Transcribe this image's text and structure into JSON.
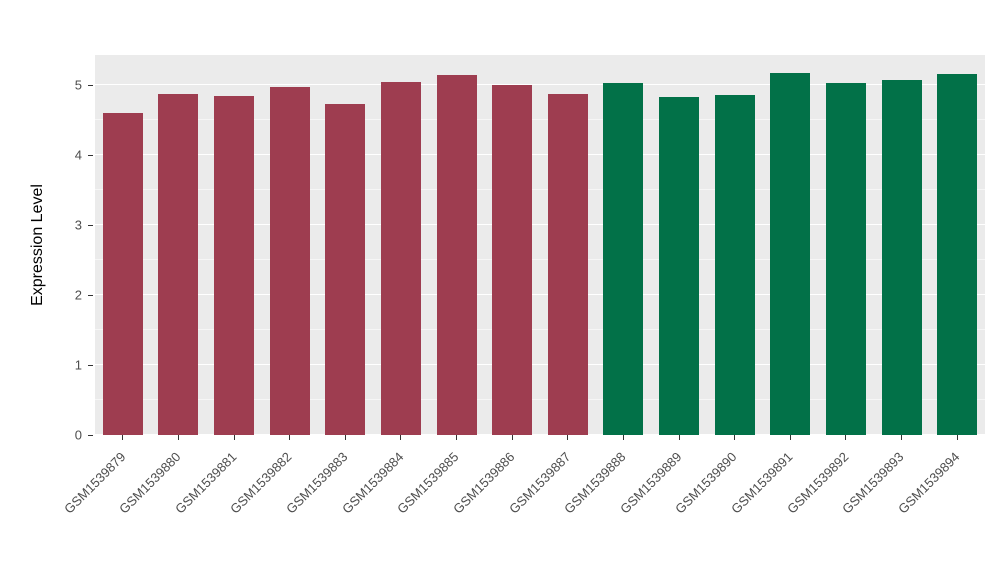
{
  "chart_data": {
    "type": "bar",
    "title": "",
    "ylabel": "Expression Level",
    "xlabel": "",
    "ylim": [
      0,
      5.43
    ],
    "yticks": [
      0,
      1,
      2,
      3,
      4,
      5
    ],
    "grid": "on",
    "legend": "none",
    "plot_background": "#EBEBEB",
    "gridline_color": "#FFFFFF",
    "group_colors": {
      "left_group": "#9E3D50",
      "right_group": "#027148"
    },
    "bars": [
      {
        "label": "GSM1539879",
        "value": 4.6,
        "color": "#9E3D50"
      },
      {
        "label": "GSM1539880",
        "value": 4.87,
        "color": "#9E3D50"
      },
      {
        "label": "GSM1539881",
        "value": 4.85,
        "color": "#9E3D50"
      },
      {
        "label": "GSM1539882",
        "value": 4.97,
        "color": "#9E3D50"
      },
      {
        "label": "GSM1539883",
        "value": 4.73,
        "color": "#9E3D50"
      },
      {
        "label": "GSM1539884",
        "value": 5.04,
        "color": "#9E3D50"
      },
      {
        "label": "GSM1539885",
        "value": 5.14,
        "color": "#9E3D50"
      },
      {
        "label": "GSM1539886",
        "value": 5.0,
        "color": "#9E3D50"
      },
      {
        "label": "GSM1539887",
        "value": 4.87,
        "color": "#9E3D50"
      },
      {
        "label": "GSM1539888",
        "value": 5.03,
        "color": "#027148"
      },
      {
        "label": "GSM1539889",
        "value": 4.83,
        "color": "#027148"
      },
      {
        "label": "GSM1539890",
        "value": 4.86,
        "color": "#027148"
      },
      {
        "label": "GSM1539891",
        "value": 5.17,
        "color": "#027148"
      },
      {
        "label": "GSM1539892",
        "value": 5.03,
        "color": "#027148"
      },
      {
        "label": "GSM1539893",
        "value": 5.07,
        "color": "#027148"
      },
      {
        "label": "GSM1539894",
        "value": 5.16,
        "color": "#027148"
      }
    ]
  }
}
